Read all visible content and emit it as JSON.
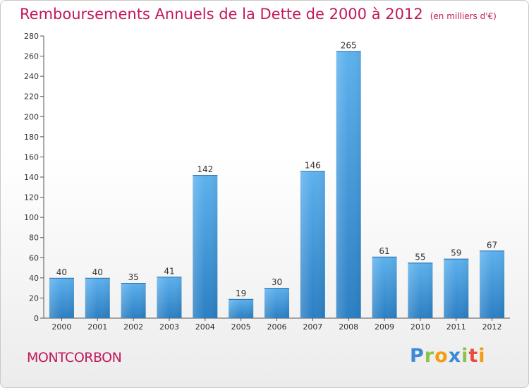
{
  "header": {
    "title": "Remboursements Annuels de la Dette de 2000 à 2012",
    "unit": "(en milliers d'€)"
  },
  "commune": "MONTCORBON",
  "logo": {
    "text": "Proxiti",
    "letters": [
      "P",
      "r",
      "o",
      "x",
      "i",
      "t",
      "i"
    ]
  },
  "chart_data": {
    "type": "bar",
    "title": "Remboursements Annuels de la Dette de 2000 à 2012",
    "subtitle": "(en milliers d'€)",
    "xlabel": "",
    "ylabel": "",
    "categories": [
      "2000",
      "2001",
      "2002",
      "2003",
      "2004",
      "2005",
      "2006",
      "2007",
      "2008",
      "2009",
      "2010",
      "2011",
      "2012"
    ],
    "values": [
      40,
      40,
      35,
      41,
      142,
      19,
      30,
      146,
      265,
      61,
      55,
      59,
      67
    ],
    "ylim": [
      0,
      280
    ],
    "yticks": [
      0,
      20,
      40,
      60,
      80,
      100,
      120,
      140,
      160,
      180,
      200,
      220,
      240,
      260,
      280
    ],
    "grid": false,
    "legend": "none",
    "colors": {
      "bar_light": "#5aaeea",
      "bar_dark": "#2a7fc4",
      "title": "#c2185b"
    }
  }
}
